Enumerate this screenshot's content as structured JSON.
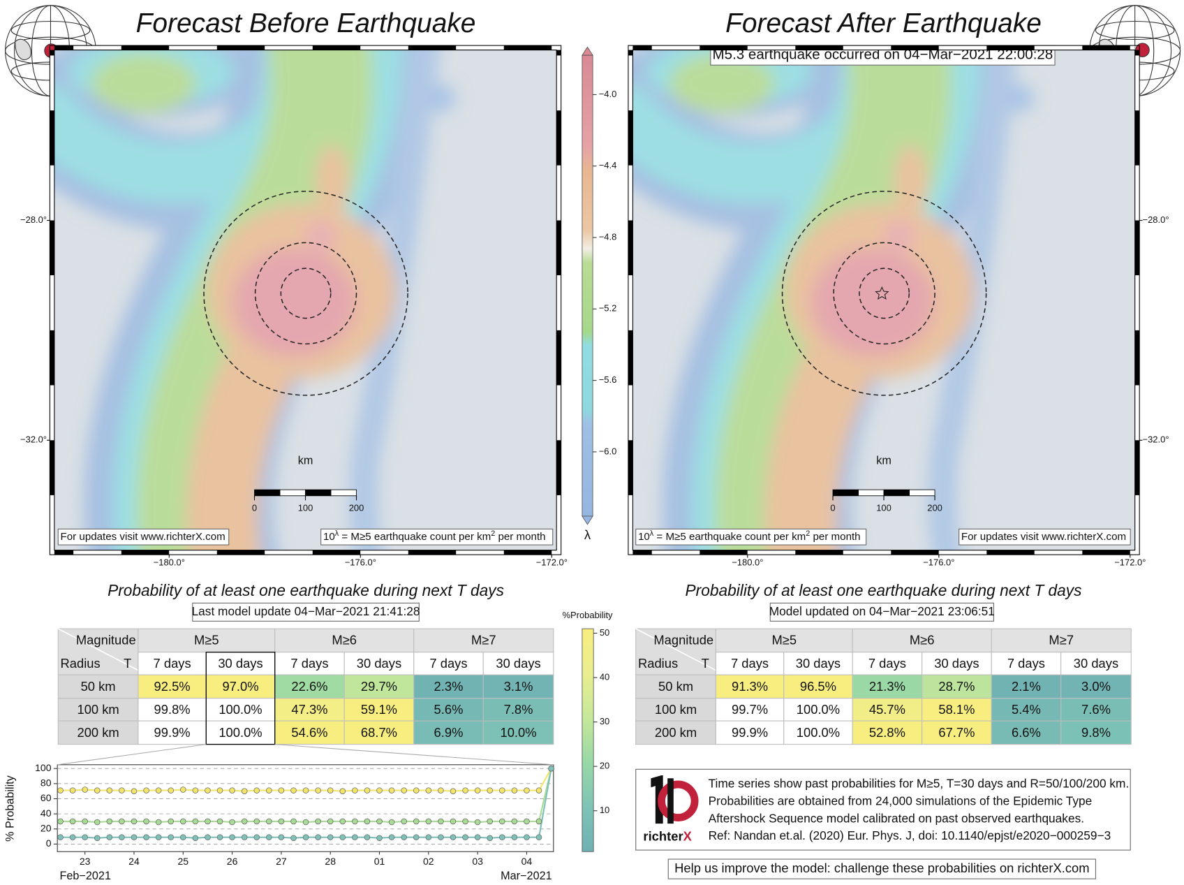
{
  "maps": {
    "xlim": [
      -182.4,
      -171.9
    ],
    "ylim": [
      -34.0,
      -24.9
    ],
    "xticks": [
      {
        "value": -180,
        "label": "−180.0°"
      },
      {
        "value": -176,
        "label": "−176.0°"
      },
      {
        "value": -172,
        "label": "−172.0°"
      }
    ],
    "yticks": [
      {
        "value": -28,
        "label": "−28.0°"
      },
      {
        "value": -32,
        "label": "−32.0°"
      }
    ],
    "scalebar": {
      "unit": "km",
      "ticks": [
        0,
        100,
        200
      ]
    },
    "updates_note": "For updates visit www.richterX.com",
    "rate_note": [
      "10",
      "λ",
      " = M≥5 earthquake count per km",
      "2",
      " per month"
    ]
  },
  "left": {
    "title": "Forecast Before Earthquake"
  },
  "right": {
    "title": "Forecast After Earthquake",
    "event": "M5.3 earthquake occurred on 04−Mar−2021 22:00:28"
  },
  "rate_colorbar": {
    "label": "λ",
    "ylim": [
      -6.36,
      -3.78
    ],
    "yticks": [
      {
        "value": -4.0,
        "label": "−4.0"
      },
      {
        "value": -4.4,
        "label": "−4.4"
      },
      {
        "value": -4.8,
        "label": "−4.8"
      },
      {
        "value": -5.2,
        "label": "−5.2"
      },
      {
        "value": -5.6,
        "label": "−5.6"
      },
      {
        "value": -6.0,
        "label": "−6.0"
      }
    ]
  },
  "table_header": {
    "title": "Probability of at least one earthquake during next T days",
    "corner_top": "Magnitude",
    "corner_left": "Radius",
    "corner_right": "T",
    "magnitudes": [
      "M≥5",
      "M≥6",
      "M≥7"
    ],
    "periods": [
      "7 days",
      "30 days",
      "7 days",
      "30 days",
      "7 days",
      "30 days"
    ]
  },
  "tables": [
    {
      "update": "Last model update 04−Mar−2021 21:41:28",
      "rows": [
        {
          "radius": "50 km",
          "values": [
            92.5,
            97.0,
            22.6,
            29.7,
            2.3,
            3.1
          ],
          "value_labels": [
            "92.5%",
            "97.0%",
            "22.6%",
            "29.7%",
            "2.3%",
            "3.1%"
          ]
        },
        {
          "radius": "100 km",
          "values": [
            99.8,
            100.0,
            47.3,
            59.1,
            5.6,
            7.8
          ],
          "value_labels": [
            "99.8%",
            "100.0%",
            "47.3%",
            "59.1%",
            "5.6%",
            "7.8%"
          ]
        },
        {
          "radius": "200 km",
          "values": [
            99.9,
            100.0,
            54.6,
            68.7,
            6.9,
            10.0
          ],
          "value_labels": [
            "99.9%",
            "100.0%",
            "54.6%",
            "68.7%",
            "6.9%",
            "10.0%"
          ]
        }
      ]
    },
    {
      "update": "Model updated on 04−Mar−2021 23:06:51",
      "rows": [
        {
          "radius": "50 km",
          "values": [
            91.3,
            96.5,
            21.3,
            28.7,
            2.1,
            3.0
          ],
          "value_labels": [
            "91.3%",
            "96.5%",
            "21.3%",
            "28.7%",
            "2.1%",
            "3.0%"
          ]
        },
        {
          "radius": "100 km",
          "values": [
            99.7,
            100.0,
            45.7,
            58.1,
            5.4,
            7.6
          ],
          "value_labels": [
            "99.7%",
            "100.0%",
            "45.7%",
            "58.1%",
            "5.4%",
            "7.6%"
          ]
        },
        {
          "radius": "200 km",
          "values": [
            99.9,
            100.0,
            52.8,
            67.7,
            6.6,
            9.8
          ],
          "value_labels": [
            "99.9%",
            "100.0%",
            "52.8%",
            "67.7%",
            "6.6%",
            "9.8%"
          ]
        }
      ]
    }
  ],
  "prob_colorbar": {
    "label": "%Probability",
    "ylim": [
      0.8,
      51
    ],
    "yticks": [
      10,
      20,
      30,
      40,
      50
    ]
  },
  "chart_data": {
    "type": "line",
    "y_label": "% Probability",
    "categories": [
      null,
      null,
      "23",
      null,
      null,
      null,
      "24",
      null,
      null,
      null,
      "25",
      null,
      null,
      null,
      "26",
      null,
      null,
      null,
      "27",
      null,
      null,
      null,
      "28",
      null,
      null,
      null,
      "01",
      null,
      null,
      null,
      "02",
      null,
      null,
      null,
      "03",
      null,
      null,
      null,
      "04",
      null,
      null
    ],
    "period_labels": [
      "Feb−2021",
      "Mar−2021"
    ],
    "ylim": [
      -10,
      105
    ],
    "yticks": [
      0,
      20,
      40,
      60,
      80,
      100
    ],
    "grid": true,
    "series": [
      {
        "color": "#f3e56a",
        "values": [
          71,
          71,
          72,
          71,
          71,
          71,
          70,
          71,
          71,
          71,
          72,
          71,
          71,
          71,
          71,
          70,
          71,
          71,
          71,
          71,
          71,
          71,
          71,
          70,
          71,
          71,
          71,
          71,
          71,
          71,
          71,
          71,
          70,
          71,
          71,
          71,
          71,
          71,
          71,
          71,
          100
        ]
      },
      {
        "color": "#a9db96",
        "values": [
          30,
          30,
          30,
          29,
          30,
          30,
          30,
          30,
          29,
          30,
          30,
          30,
          30,
          30,
          29,
          30,
          30,
          30,
          30,
          30,
          29,
          30,
          30,
          30,
          30,
          30,
          30,
          29,
          30,
          30,
          30,
          30,
          30,
          30,
          29,
          30,
          30,
          30,
          30,
          30,
          100
        ]
      },
      {
        "color": "#7fc1b8",
        "values": [
          9,
          9,
          9,
          8,
          9,
          9,
          9,
          9,
          9,
          9,
          9,
          8,
          9,
          9,
          9,
          9,
          9,
          9,
          9,
          8,
          9,
          9,
          9,
          9,
          9,
          9,
          8,
          9,
          9,
          9,
          9,
          9,
          9,
          9,
          9,
          8,
          9,
          9,
          9,
          9,
          100
        ]
      }
    ]
  },
  "info": {
    "logo": [
      "richter",
      "X"
    ],
    "lines": [
      "Time series show past probabilities for M≥5, T=30 days and R=50/100/200 km.",
      "Probabilities are obtained from 24,000 simulations of the Epidemic Type",
      "Aftershock Sequence model calibrated on past observed earthquakes.",
      "Ref: Nandan et.al. (2020) Eur. Phys. J, doi: 10.1140/epjst/e2020−000259−3"
    ],
    "help": "Help us improve the model: challenge these probabilities on richterX.com"
  }
}
